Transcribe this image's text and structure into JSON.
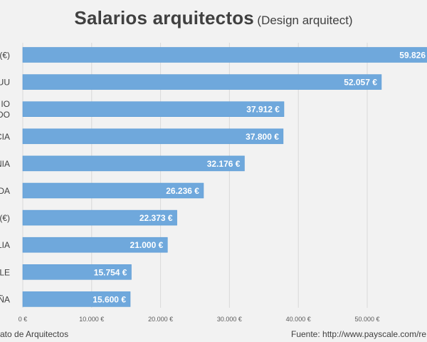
{
  "title": {
    "main": "Salarios arquitectos",
    "sub": "(Design arquitect)"
  },
  "footer": {
    "left": "ato de Arquitectos",
    "right": "Fuente: http://www.payscale.com/re"
  },
  "colors": {
    "bar": "#6fa8dc",
    "bar_border": "#5b9bd5",
    "grid": "#d9d9d9",
    "label_text": "#ffffff",
    "axis_text": "#595959",
    "category_text": "#404040"
  },
  "chart_data": {
    "type": "bar",
    "orientation": "horizontal",
    "categories": [
      "(€)",
      "UU",
      "IO\nDO",
      "CIA",
      "NIA",
      "DA",
      "(€)",
      "LIA",
      "LE",
      "ÑA"
    ],
    "values": [
      59826,
      52057,
      37912,
      37800,
      32176,
      26236,
      22373,
      21000,
      15754,
      15600
    ],
    "data_labels": [
      "59.826",
      "52.057 €",
      "37.912 €",
      "37.800 €",
      "32.176 €",
      "26.236 €",
      "22.373 €",
      "21.000 €",
      "15.754 €",
      "15.600 €"
    ],
    "xticks": [
      0,
      10000,
      20000,
      30000,
      40000,
      50000
    ],
    "xtick_labels": [
      "0 €",
      "10.000 €",
      "20.000 €",
      "30.000 €",
      "40.000 €",
      "50.000 €"
    ],
    "xlim": [
      0,
      60000
    ],
    "grid": true,
    "legend": "none"
  }
}
